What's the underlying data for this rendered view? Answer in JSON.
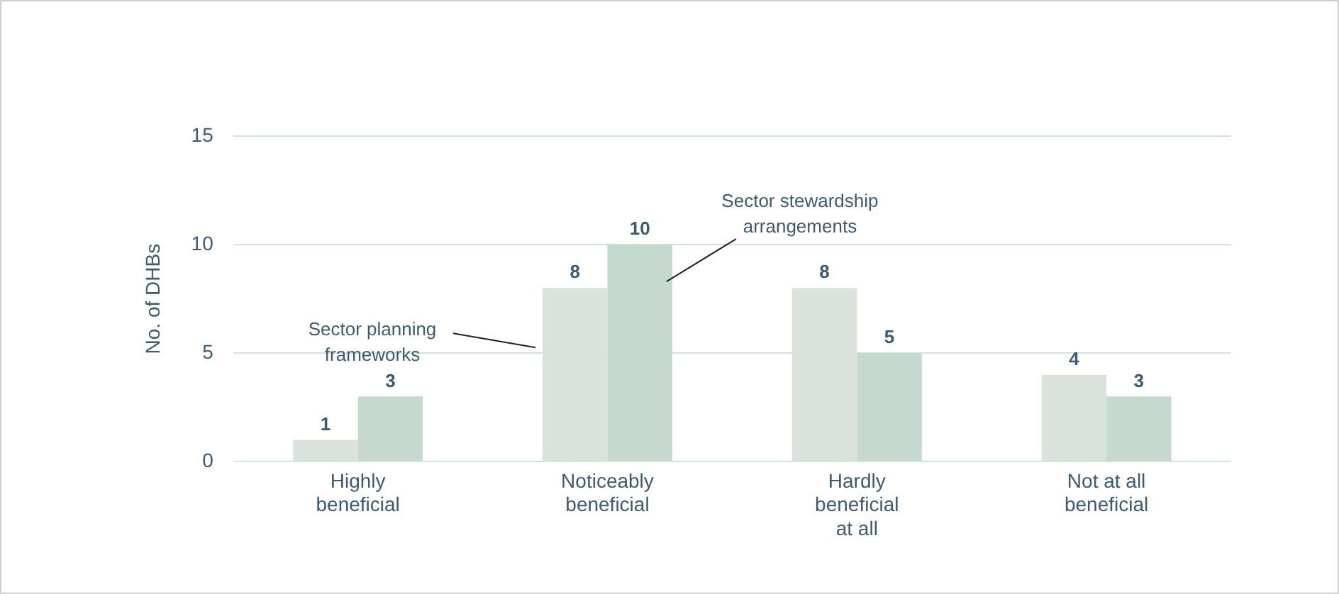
{
  "chart_data": {
    "type": "bar",
    "ylabel": "No. of DHBs",
    "categories": [
      "Highly beneficial",
      "Noticeably beneficial",
      "Hardly beneficial at all",
      "Not at all beneficial"
    ],
    "series": [
      {
        "name": "Sector planning frameworks",
        "color": "#d9e3dc",
        "values": [
          1,
          8,
          8,
          4
        ]
      },
      {
        "name": "Sector stewardship arrangements",
        "color": "#c6d9cf",
        "values": [
          3,
          10,
          5,
          3
        ]
      }
    ],
    "ylim": [
      0,
      15
    ],
    "yticks": [
      0,
      5,
      10,
      15
    ],
    "grid": "y",
    "data_labels": true
  }
}
